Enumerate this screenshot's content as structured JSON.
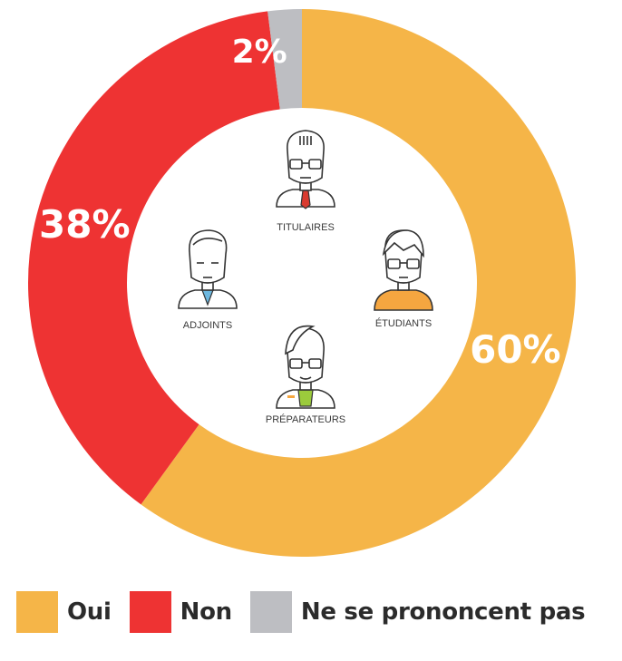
{
  "chart_data": {
    "type": "pie",
    "donut": true,
    "categories": [
      "Oui",
      "Non",
      "Ne se prononcent pas"
    ],
    "values": [
      60,
      38,
      2
    ],
    "value_labels": [
      "60%",
      "38%",
      "2%"
    ],
    "colors": [
      "#F5B548",
      "#EE3333",
      "#BDBEC2"
    ],
    "legend_position": "bottom"
  },
  "center_figures": [
    {
      "label": "TITULAIRES",
      "icon": "pharmacist-tie-icon",
      "accent": "#D93A2F"
    },
    {
      "label": "ADJOINTS",
      "icon": "pharmacist-assistant-icon",
      "accent": "#6DB8E0"
    },
    {
      "label": "ÉTUDIANTS",
      "icon": "student-icon",
      "accent": "#F5A640"
    },
    {
      "label": "PRÉPARATEURS",
      "icon": "preparer-icon",
      "accent": "#9BCB3C"
    }
  ]
}
